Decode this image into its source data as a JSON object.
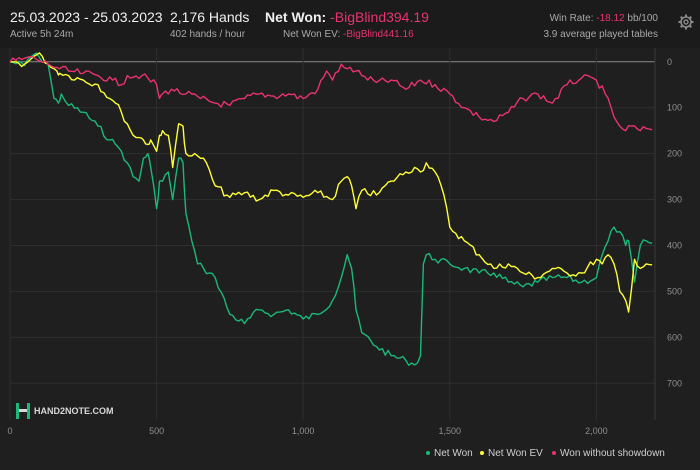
{
  "header": {
    "date_range": "25.03.2023 - 25.03.2023",
    "active": "Active 5h 24m",
    "hands": "2,176 Hands",
    "hands_per_hour": "402 hands / hour",
    "net_won_label": "Net Won:",
    "net_won_value": "-BigBlind394.19",
    "net_won_ev_label": "Net Won  EV:",
    "net_won_ev_value": "-BigBlind441.16",
    "win_rate_label": "Win Rate:",
    "win_rate_value": "-18.12",
    "win_rate_unit": "bb/100",
    "tables": "3.9 average played tables"
  },
  "logo_text": "HAND2NOTE.COM",
  "icons": {
    "settings": "gear-icon",
    "logo": "hand2note-logo-icon"
  },
  "colors": {
    "background": "#1f1f1f",
    "net_won": "#1bb978",
    "net_won_ev": "#ffff33",
    "without_showdown": "#e8336e",
    "zero_line": "#8a8a8a"
  },
  "chart_data": {
    "type": "line",
    "xlabel": "",
    "ylabel": "",
    "xlim": [
      0,
      2200
    ],
    "ylim": [
      -780,
      30
    ],
    "y_axis_inverted_display": true,
    "x_ticks": [
      0,
      500,
      1000,
      1500,
      2000
    ],
    "x_tick_labels": [
      "0",
      "500",
      "1,000",
      "1,500",
      "2,000"
    ],
    "y_ticks": [
      0,
      -100,
      -200,
      -300,
      -400,
      -500,
      -600,
      -700
    ],
    "y_tick_labels": [
      "0",
      "100",
      "200",
      "300",
      "400",
      "500",
      "600",
      "700"
    ],
    "grid": true,
    "legend_position": "bottom-right",
    "series": [
      {
        "name": "Net Won",
        "color": "#1bb978",
        "x": [
          0,
          50,
          60,
          80,
          100,
          130,
          150,
          165,
          175,
          200,
          250,
          300,
          340,
          360,
          380,
          400,
          420,
          440,
          455,
          470,
          480,
          500,
          510,
          520,
          540,
          555,
          575,
          590,
          600,
          620,
          640,
          660,
          680,
          700,
          750,
          800,
          850,
          900,
          950,
          1000,
          1050,
          1100,
          1130,
          1150,
          1165,
          1180,
          1200,
          1250,
          1300,
          1350,
          1380,
          1400,
          1410,
          1420,
          1450,
          1500,
          1550,
          1600,
          1650,
          1700,
          1750,
          1800,
          1850,
          1900,
          1950,
          2000,
          2020,
          2040,
          2060,
          2080,
          2100,
          2110,
          2130,
          2150,
          2170,
          2190
        ],
        "y": [
          0,
          -8,
          5,
          15,
          10,
          -5,
          -80,
          -90,
          -70,
          -95,
          -110,
          -140,
          -170,
          -180,
          -195,
          -220,
          -250,
          -260,
          -210,
          -200,
          -230,
          -320,
          -260,
          -260,
          -240,
          -300,
          -210,
          -220,
          -330,
          -390,
          -440,
          -450,
          -460,
          -470,
          -550,
          -570,
          -540,
          -550,
          -540,
          -560,
          -550,
          -520,
          -470,
          -420,
          -450,
          -540,
          -590,
          -620,
          -640,
          -650,
          -660,
          -640,
          -440,
          -420,
          -430,
          -440,
          -450,
          -460,
          -460,
          -480,
          -490,
          -480,
          -470,
          -470,
          -480,
          -470,
          -420,
          -390,
          -360,
          -370,
          -400,
          -390,
          -480,
          -400,
          -390,
          -395
        ]
      },
      {
        "name": "Net Won  EV",
        "color": "#ffff33",
        "x": [
          0,
          50,
          70,
          90,
          110,
          130,
          150,
          160,
          170,
          200,
          250,
          300,
          340,
          360,
          380,
          400,
          420,
          440,
          455,
          470,
          480,
          500,
          510,
          520,
          540,
          555,
          575,
          590,
          600,
          620,
          640,
          660,
          700,
          750,
          800,
          850,
          900,
          950,
          1000,
          1050,
          1100,
          1130,
          1150,
          1165,
          1180,
          1200,
          1250,
          1300,
          1350,
          1380,
          1400,
          1420,
          1450,
          1480,
          1500,
          1550,
          1600,
          1650,
          1700,
          1750,
          1800,
          1850,
          1900,
          1950,
          2000,
          2020,
          2040,
          2060,
          2080,
          2100,
          2110,
          2130,
          2150,
          2170,
          2190
        ],
        "y": [
          0,
          -5,
          5,
          15,
          12,
          -5,
          -15,
          -20,
          -25,
          -30,
          -40,
          -50,
          -80,
          -90,
          -110,
          -135,
          -160,
          -165,
          -170,
          -180,
          -170,
          -195,
          -160,
          -150,
          -160,
          -230,
          -135,
          -140,
          -200,
          -205,
          -205,
          -210,
          -270,
          -295,
          -285,
          -300,
          -280,
          -290,
          -295,
          -285,
          -300,
          -260,
          -250,
          -270,
          -320,
          -280,
          -290,
          -260,
          -240,
          -230,
          -240,
          -220,
          -240,
          -290,
          -360,
          -390,
          -420,
          -450,
          -440,
          -460,
          -470,
          -450,
          -460,
          -460,
          -430,
          -440,
          -420,
          -440,
          -500,
          -520,
          -545,
          -430,
          -450,
          -440,
          -442
        ]
      },
      {
        "name": "Won without showdown",
        "color": "#e8336e",
        "x": [
          0,
          40,
          60,
          90,
          130,
          170,
          200,
          250,
          300,
          350,
          380,
          400,
          450,
          500,
          510,
          520,
          550,
          600,
          650,
          700,
          750,
          800,
          850,
          900,
          950,
          1000,
          1050,
          1080,
          1100,
          1130,
          1150,
          1180,
          1200,
          1250,
          1300,
          1350,
          1400,
          1450,
          1500,
          1550,
          1600,
          1650,
          1700,
          1750,
          1800,
          1850,
          1900,
          1950,
          2000,
          2030,
          2060,
          2080,
          2100,
          2120,
          2150,
          2170,
          2190
        ],
        "y": [
          0,
          5,
          10,
          5,
          -5,
          -15,
          -20,
          -25,
          -30,
          -40,
          -50,
          -30,
          -30,
          -50,
          -80,
          -70,
          -60,
          -70,
          -80,
          -90,
          -95,
          -80,
          -70,
          -75,
          -70,
          -80,
          -60,
          -20,
          -40,
          -5,
          -15,
          -20,
          -30,
          -45,
          -40,
          -60,
          -40,
          -50,
          -70,
          -100,
          -120,
          -130,
          -110,
          -80,
          -70,
          -90,
          -50,
          -35,
          -40,
          -70,
          -120,
          -140,
          -150,
          -140,
          -150,
          -145,
          -148
        ]
      }
    ]
  }
}
